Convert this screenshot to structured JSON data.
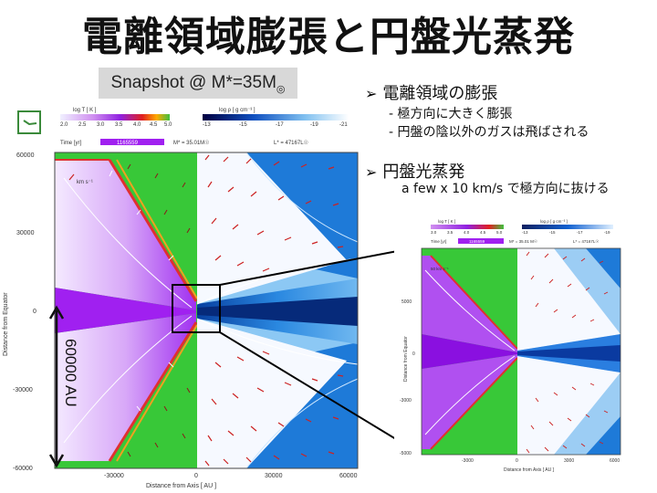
{
  "title": "電離領域膨張と円盤光蒸発",
  "snapshot_label": "Snapshot @ M*=35M",
  "bullets": {
    "first": {
      "heading": "電離領域の膨張",
      "items": [
        "- 極方向に大きく膨張",
        "- 円盤の陰以外のガスは飛ばされる"
      ]
    },
    "second": {
      "heading": "円盤光蒸発",
      "items": [
        "a few x 10 km/s で極方向に抜ける"
      ]
    }
  },
  "simulation": {
    "colorbar_T": {
      "label": "log T  [ K ]",
      "ticks": [
        "2.0",
        "2.5",
        "3.0",
        "3.5",
        "4.0",
        "4.5",
        "5.0"
      ]
    },
    "colorbar_rho": {
      "label": "log ρ  [ g cm⁻³ ]",
      "ticks": [
        "-13",
        "-15",
        "-17",
        "-19",
        "-21"
      ]
    },
    "info": {
      "time_label": "Time [yr]",
      "time_value": "1165559",
      "mass_label": "M* =  35.01M☉",
      "lum_label": "L* =  47167L☉"
    },
    "velocity_label": "km s⁻¹",
    "y_axis": {
      "label": "Distance  from  Equator",
      "ticks": [
        "60000",
        "30000",
        "0",
        "-30000",
        "-60000"
      ]
    },
    "x_axis": {
      "label": "Distance  from  Axis   [ AU ]",
      "ticks": [
        "-30000",
        "0",
        "30000",
        "60000"
      ]
    },
    "scale_label": "60000 AU"
  },
  "inset": {
    "colorbar_T": {
      "label": "log T  [ K ]",
      "ticks": [
        "3.0",
        "3.5",
        "4.0",
        "4.5",
        "5.0"
      ]
    },
    "colorbar_rho": {
      "label": "log ρ  [ g cm⁻³ ]",
      "ticks": [
        "-13",
        "-15",
        "-17",
        "-19"
      ]
    },
    "info": {
      "time_label": "Time [yr]",
      "time_value": "1165559",
      "mass_label": "M* = 35.01 M☉",
      "lum_label": "L* = 47167L☉"
    },
    "velocity_label": "50  km s⁻¹",
    "y_axis": {
      "label": "Distance  from  Equator",
      "ticks": [
        "5000",
        "0",
        "-3000",
        "-5000"
      ]
    },
    "x_axis": {
      "label": "Distance  from  Axis   [ AU ]",
      "ticks": [
        "-3000",
        "0",
        "3000",
        "6000"
      ]
    }
  },
  "colors": {
    "ionized_purple": "#a020f0",
    "neutral_green": "#33cc33",
    "density_blue": "#1e7ad8",
    "arrow_red": "#cc2222"
  }
}
